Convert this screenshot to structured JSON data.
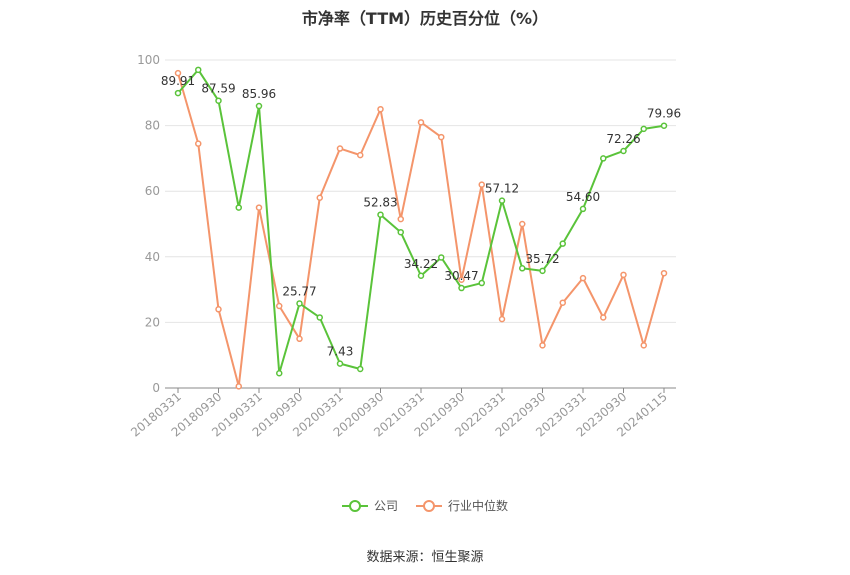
{
  "chart_data": {
    "type": "line",
    "title": "市净率（TTM）历史百分位（%）",
    "source": "数据来源：恒生聚源",
    "ylim": [
      0,
      100
    ],
    "yticks": [
      0,
      20,
      40,
      60,
      80,
      100
    ],
    "grid": true,
    "legend_position": "bottom",
    "x_tick_labels": [
      "20180331",
      "20180930",
      "20190331",
      "20190930",
      "20200331",
      "20200930",
      "20210331",
      "20210930",
      "20220331",
      "20220930",
      "20230331",
      "20230930",
      "20240115"
    ],
    "x": [
      "20180331",
      "20180630",
      "20180930",
      "20181231",
      "20190331",
      "20190630",
      "20190930",
      "20191231",
      "20200331",
      "20200630",
      "20200930",
      "20201231",
      "20210331",
      "20210630",
      "20210930",
      "20211231",
      "20220331",
      "20220630",
      "20220930",
      "20221231",
      "20230331",
      "20230630",
      "20230930",
      "20231231",
      "20240115"
    ],
    "series": [
      {
        "name": "公司",
        "color": "#5ac33a",
        "values": [
          89.91,
          97,
          87.59,
          55,
          85.96,
          4.5,
          25.77,
          21.5,
          7.43,
          5.8,
          52.83,
          47.5,
          34.22,
          39.8,
          30.47,
          32,
          57.12,
          36.5,
          35.72,
          44,
          54.6,
          70,
          72.26,
          79,
          79.96
        ],
        "labels": {
          "0": "89.91",
          "2": "87.59",
          "4": "85.96",
          "6": "25.77",
          "8": "7.43",
          "10": "52.83",
          "12": "34.22",
          "14": "30.47",
          "16": "57.12",
          "18": "35.72",
          "20": "54.60",
          "22": "72.26",
          "24": "79.96"
        }
      },
      {
        "name": "行业中位数",
        "color": "#f4956b",
        "values": [
          96,
          74.5,
          24,
          0.5,
          55,
          25,
          15,
          58,
          73,
          71,
          85,
          51.5,
          81,
          76.5,
          33,
          62,
          21,
          50,
          13,
          26,
          33.5,
          21.5,
          34.5,
          13,
          35
        ]
      }
    ]
  }
}
